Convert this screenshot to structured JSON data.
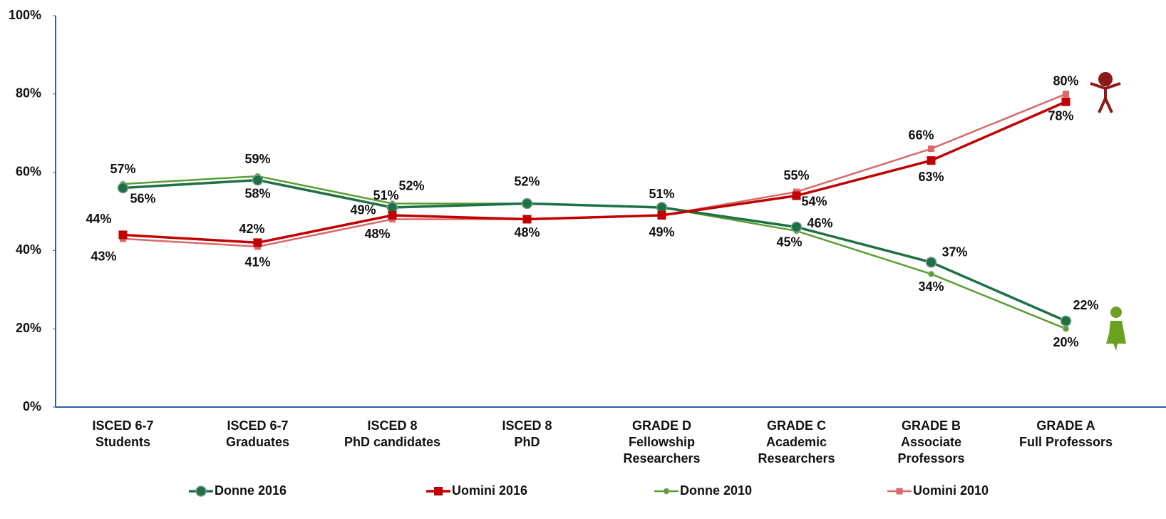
{
  "chart_data": {
    "type": "line",
    "categories": [
      [
        "ISCED 6-7",
        "Students"
      ],
      [
        "ISCED 6-7",
        "Graduates"
      ],
      [
        "ISCED 8",
        "PhD candidates"
      ],
      [
        "ISCED 8",
        "PhD"
      ],
      [
        "GRADE D",
        "Fellowship",
        "Researchers"
      ],
      [
        "GRADE C",
        "Academic",
        "Researchers"
      ],
      [
        "GRADE B",
        "Associate",
        "Professors"
      ],
      [
        "GRADE A",
        "Full Professors"
      ]
    ],
    "series": [
      {
        "name": "Donne 2016",
        "color": "#1e7145",
        "marker": "circle-large",
        "values": [
          56,
          58,
          51,
          52,
          51,
          46,
          37,
          22
        ],
        "value_labels": [
          "56%",
          "58%",
          "51%",
          null,
          "51%",
          "46%",
          "37%",
          "22%"
        ]
      },
      {
        "name": "Uomini 2016",
        "color": "#c00000",
        "marker": "square-large",
        "values": [
          44,
          42,
          49,
          48,
          49,
          54,
          63,
          78
        ],
        "value_labels": [
          "44%",
          "42%",
          "49%",
          "48%",
          "49%",
          "54%",
          "63%",
          "78%"
        ]
      },
      {
        "name": "Donne 2010",
        "color": "#5c9e31",
        "marker": "circle-small",
        "values": [
          57,
          59,
          52,
          52,
          51,
          45,
          34,
          20
        ],
        "value_labels": [
          "57%",
          "59%",
          "52%",
          "52%",
          null,
          "45%",
          "34%",
          "20%"
        ]
      },
      {
        "name": "Uomini 2010",
        "color": "#d9696a",
        "marker": "square-small",
        "values": [
          43,
          41,
          48,
          48,
          49,
          55,
          66,
          80
        ],
        "value_labels": [
          "43%",
          "41%",
          "48%",
          null,
          null,
          "55%",
          "66%",
          "80%"
        ]
      }
    ],
    "ylim": [
      0,
      100
    ],
    "yticks": [
      {
        "value": 0,
        "label": "0%"
      },
      {
        "value": 20,
        "label": "20%"
      },
      {
        "value": 40,
        "label": "40%"
      },
      {
        "value": 60,
        "label": "60%"
      },
      {
        "value": 80,
        "label": "80%"
      },
      {
        "value": 100,
        "label": "100%"
      }
    ],
    "grid": false,
    "legend": "bottom"
  }
}
